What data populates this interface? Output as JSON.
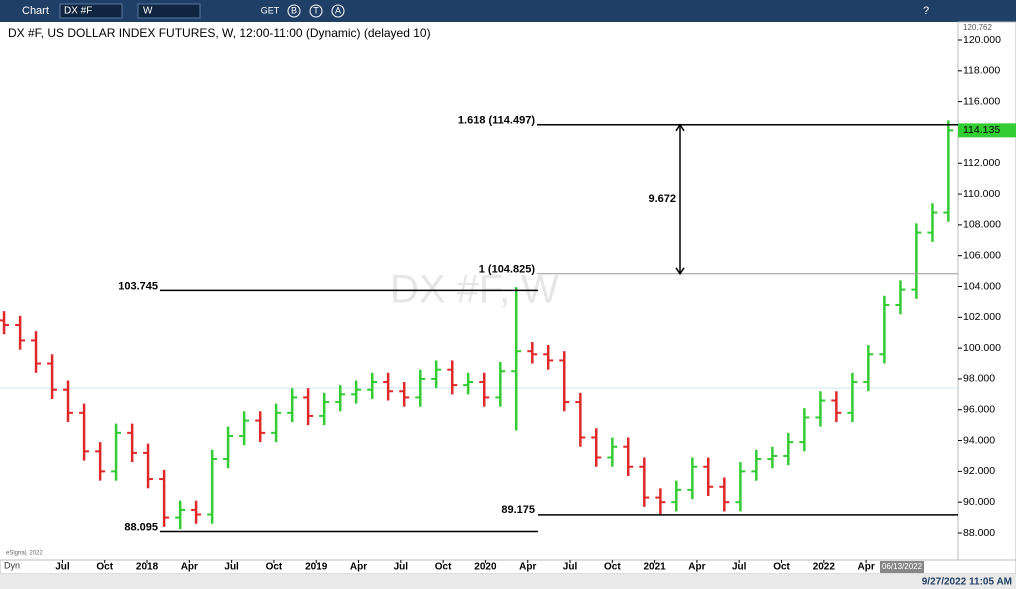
{
  "toolbar": {
    "app": "Chart",
    "symbol": "DX #F",
    "interval": "W",
    "icon_labels": [
      "GET",
      "B",
      "T",
      "A"
    ],
    "help": "?"
  },
  "chart_data": {
    "type": "ohlc",
    "title": "DX #F, US DOLLAR INDEX FUTURES, W, 12:00-11:00 (Dynamic) (delayed 10)",
    "watermark": "DX #F, W",
    "x": [
      2017.155,
      2017.25,
      2017.344,
      2017.439,
      2017.533,
      2017.628,
      2017.723,
      2017.817,
      2017.912,
      2018.006,
      2018.101,
      2018.196,
      2018.29,
      2018.385,
      2018.479,
      2018.574,
      2018.669,
      2018.763,
      2018.858,
      2018.952,
      2019.047,
      2019.142,
      2019.236,
      2019.331,
      2019.425,
      2019.52,
      2019.615,
      2019.709,
      2019.804,
      2019.898,
      2019.993,
      2020.088,
      2020.182,
      2020.277,
      2020.371,
      2020.466,
      2020.561,
      2020.655,
      2020.75,
      2020.844,
      2020.939,
      2021.034,
      2021.128,
      2021.223,
      2021.317,
      2021.412,
      2021.507,
      2021.601,
      2021.696,
      2021.79,
      2021.885,
      2021.98,
      2022.074,
      2022.169,
      2022.263,
      2022.358,
      2022.453,
      2022.547,
      2022.642,
      2022.736
    ],
    "open": [
      101.8,
      101.5,
      100.5,
      99.0,
      97.3,
      95.8,
      93.3,
      92.0,
      94.5,
      93.2,
      91.5,
      89.0,
      89.5,
      89.2,
      92.8,
      94.3,
      95.3,
      94.5,
      95.8,
      96.8,
      95.6,
      96.5,
      97.0,
      97.3,
      97.8,
      97.2,
      96.8,
      98.0,
      98.6,
      97.6,
      97.8,
      96.8,
      98.5,
      99.8,
      99.6,
      99.2,
      96.5,
      94.2,
      92.9,
      93.6,
      92.3,
      90.3,
      90.0,
      90.8,
      92.3,
      91.0,
      90.0,
      92.0,
      92.8,
      93.0,
      93.9,
      95.5,
      96.6,
      95.8,
      97.8,
      99.6,
      102.8,
      103.8,
      107.5,
      108.8
    ],
    "high": [
      102.4,
      102.1,
      101.1,
      99.6,
      97.9,
      96.4,
      93.9,
      95.1,
      95.1,
      93.8,
      92.1,
      90.1,
      90.1,
      93.4,
      94.9,
      95.9,
      95.9,
      96.4,
      97.4,
      97.4,
      97.1,
      97.6,
      97.9,
      98.4,
      98.4,
      97.8,
      98.6,
      99.2,
      99.2,
      98.4,
      98.4,
      99.1,
      103.96,
      100.4,
      100.2,
      99.8,
      97.1,
      94.8,
      94.2,
      94.2,
      92.9,
      90.9,
      91.4,
      92.9,
      92.9,
      91.6,
      92.6,
      93.4,
      93.6,
      94.5,
      96.1,
      97.2,
      97.2,
      98.4,
      100.2,
      103.4,
      104.4,
      108.1,
      109.4,
      114.78
    ],
    "low": [
      100.9,
      99.9,
      98.4,
      96.7,
      95.2,
      92.7,
      91.4,
      91.4,
      92.6,
      90.9,
      88.4,
      88.25,
      88.6,
      88.6,
      92.2,
      93.7,
      93.9,
      93.9,
      95.2,
      95.0,
      95.0,
      95.9,
      96.4,
      96.7,
      96.6,
      96.2,
      96.2,
      97.4,
      97.0,
      97.0,
      96.2,
      96.2,
      94.65,
      99.0,
      98.6,
      95.9,
      93.6,
      92.3,
      92.3,
      91.7,
      89.7,
      89.2,
      89.4,
      90.2,
      90.4,
      89.4,
      89.4,
      91.4,
      92.2,
      92.4,
      93.3,
      94.9,
      95.2,
      95.2,
      97.2,
      99.0,
      102.2,
      103.2,
      106.9,
      108.2
    ],
    "close": [
      101.5,
      100.5,
      99.0,
      97.3,
      95.8,
      93.3,
      92.0,
      94.5,
      93.2,
      91.5,
      89.0,
      89.5,
      89.2,
      92.8,
      94.3,
      95.3,
      94.5,
      95.8,
      96.8,
      95.6,
      96.5,
      97.0,
      97.3,
      97.8,
      97.2,
      96.8,
      98.0,
      98.6,
      97.6,
      97.8,
      96.8,
      98.5,
      99.8,
      99.6,
      99.2,
      96.5,
      94.2,
      92.9,
      93.6,
      92.3,
      90.3,
      90.0,
      90.8,
      92.3,
      91.0,
      90.0,
      92.0,
      92.8,
      93.0,
      93.9,
      95.5,
      96.6,
      95.8,
      97.8,
      99.6,
      102.8,
      103.8,
      107.5,
      108.8,
      114.135
    ],
    "up_color": "#33cc33",
    "down_color": "#e02828",
    "xlim": [
      2017.131,
      2022.793
    ],
    "xticks": [
      {
        "value": 2017.5,
        "label": "Jul"
      },
      {
        "value": 2017.75,
        "label": "Oct"
      },
      2018,
      {
        "value": 2018.25,
        "label": "Apr"
      },
      {
        "value": 2018.5,
        "label": "Jul"
      },
      {
        "value": 2018.75,
        "label": "Oct"
      },
      2019,
      {
        "value": 2019.25,
        "label": "Apr"
      },
      {
        "value": 2019.5,
        "label": "Jul"
      },
      {
        "value": 2019.75,
        "label": "Oct"
      },
      2020,
      {
        "value": 2020.25,
        "label": "Apr"
      },
      {
        "value": 2020.5,
        "label": "Jul"
      },
      {
        "value": 2020.75,
        "label": "Oct"
      },
      2021,
      {
        "value": 2021.25,
        "label": "Apr"
      },
      {
        "value": 2021.5,
        "label": "Jul"
      },
      {
        "value": 2021.75,
        "label": "Oct"
      },
      2022,
      {
        "value": 2022.25,
        "label": "Apr"
      }
    ],
    "ylim": [
      88,
      120
    ],
    "yticks": [
      {
        "value": 88,
        "label": "88.000"
      },
      {
        "value": 90,
        "label": "90.000"
      },
      {
        "value": 92,
        "label": "92.000"
      },
      {
        "value": 94,
        "label": "94.000"
      },
      {
        "value": 96,
        "label": "96.000"
      },
      {
        "value": 98,
        "label": "98.000"
      },
      {
        "value": 100,
        "label": "100.000"
      },
      {
        "value": 102,
        "label": "102.000"
      },
      {
        "value": 104,
        "label": "104.000"
      },
      {
        "value": 106,
        "label": "106.000"
      },
      {
        "value": 108,
        "label": "108.000"
      },
      {
        "value": 110,
        "label": "110.000"
      },
      {
        "value": 112,
        "label": "112.000"
      },
      {
        "value": 114,
        "label": "114.000"
      },
      {
        "value": 116,
        "label": "116.000"
      },
      {
        "value": 118,
        "label": "118.000"
      },
      {
        "value": 120,
        "label": "120.000"
      }
    ],
    "axis_top": 120.762,
    "fib_levels": [
      {
        "label": "1.618 (114.497)",
        "value": 114.497
      },
      {
        "label": "1 (104.825)",
        "value": 104.825
      }
    ],
    "measure": 9.672,
    "levels": [
      103.745,
      88.095,
      89.175
    ],
    "grid": false
  },
  "status": {
    "mode": "Dyn",
    "copyright": "eSignal, 2022",
    "cursor_date": "06/13/2022",
    "timestamp": "9/27/2022 11:05 AM"
  }
}
